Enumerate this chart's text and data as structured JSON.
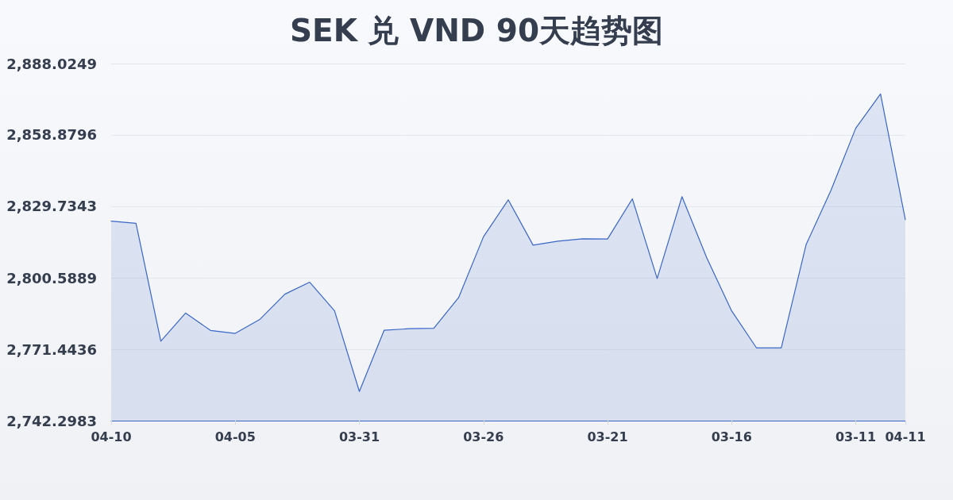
{
  "chart_data": {
    "type": "area",
    "title": "SEK 兑 VND 90天趋势图",
    "categories": [
      "04-10",
      null,
      null,
      null,
      null,
      "04-05",
      null,
      null,
      null,
      null,
      "03-31",
      null,
      null,
      null,
      null,
      "03-26",
      null,
      null,
      null,
      null,
      "03-21",
      null,
      null,
      null,
      null,
      "03-16",
      null,
      null,
      null,
      null,
      "03-11",
      null,
      "04-11"
    ],
    "values": [
      2823.7,
      2822.8,
      2774.7,
      2786.2,
      2779.1,
      2777.9,
      2783.7,
      2793.9,
      2798.8,
      2787.1,
      2754.2,
      2779.2,
      2779.8,
      2780.0,
      2792.5,
      2817.3,
      2832.4,
      2813.9,
      2815.5,
      2816.5,
      2816.4,
      2832.8,
      2800.3,
      2833.7,
      2808.7,
      2787.1,
      2772.0,
      2772.0,
      2814.1,
      2836.2,
      2861.6,
      2875.6,
      2824.3
    ],
    "color": "#3a66c8",
    "ylim": [
      2742.2983,
      2888.0249
    ],
    "yticks": [
      {
        "value": 2742.2983,
        "label": "2,742.2983"
      },
      {
        "value": 2771.4436,
        "label": "2,771.4436"
      },
      {
        "value": 2800.5889,
        "label": "2,800.5889"
      },
      {
        "value": 2829.7343,
        "label": "2,829.7343"
      },
      {
        "value": 2858.8796,
        "label": "2,858.8796"
      },
      {
        "value": 2888.0249,
        "label": "2,888.0249"
      }
    ],
    "grid": "y",
    "marker": "none",
    "line_style": "solid"
  }
}
